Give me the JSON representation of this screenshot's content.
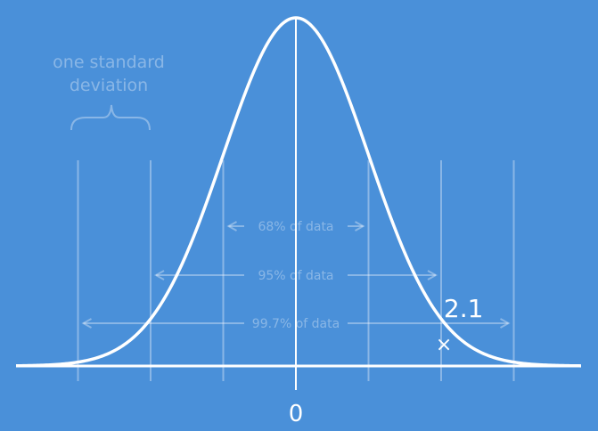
{
  "colors": {
    "background": "#4a90d9",
    "curve": "#ffffff",
    "faint_line": "rgba(255,255,255,0.35)"
  },
  "annotation": {
    "line1": "one standard",
    "line2": "deviation"
  },
  "ranges": [
    {
      "label": "68% of data",
      "sigma": 1
    },
    {
      "label": "95% of data",
      "sigma": 2
    },
    {
      "label": "99.7% of data",
      "sigma": 3
    }
  ],
  "axis": {
    "center_label": "0"
  },
  "point": {
    "label": "2.1",
    "marker": "×",
    "sigma": 2.1
  }
}
